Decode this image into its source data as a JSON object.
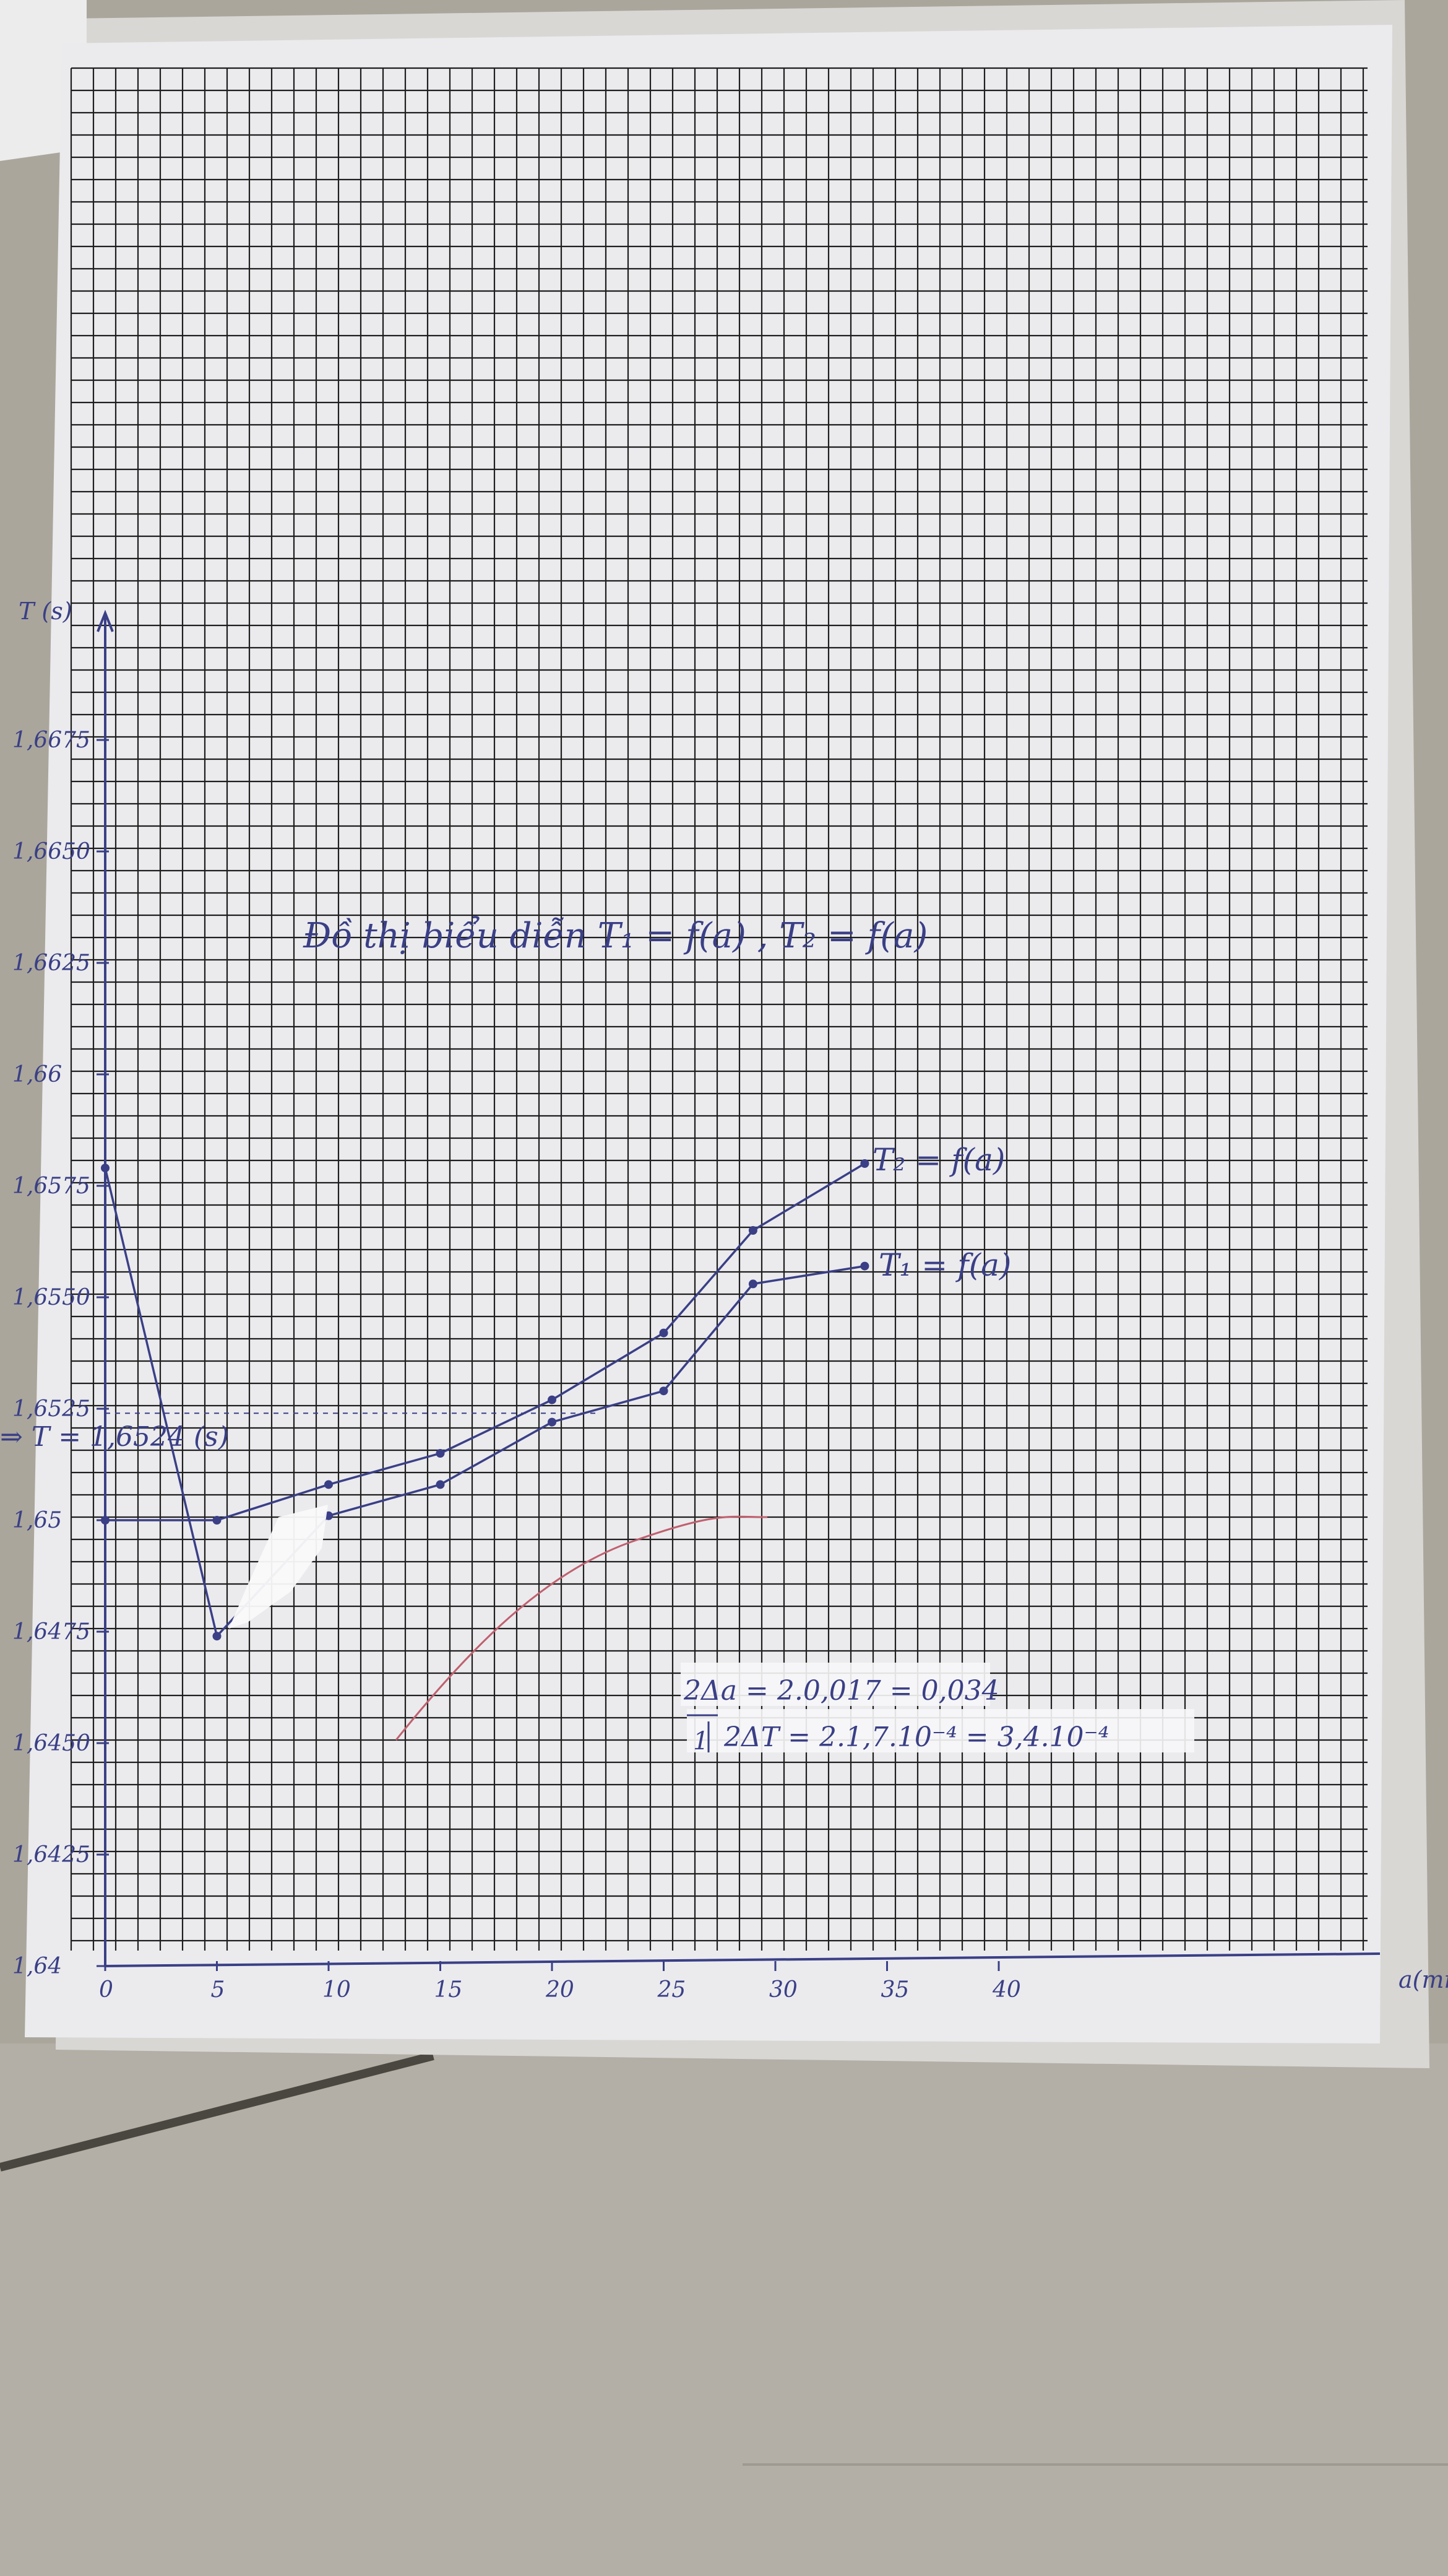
{
  "chart_data": {
    "type": "line",
    "title": "Đồ thị biểu diễn T₁ = f(a) , T₂ = f(a)",
    "xlabel": "a(mm)",
    "ylabel": "T (s)",
    "xlim": [
      0,
      45
    ],
    "ylim": [
      1.64,
      1.6725
    ],
    "grid": true,
    "x_ticks": [
      "0",
      "5",
      "10",
      "15",
      "20",
      "25",
      "30",
      "35",
      "40"
    ],
    "y_ticks": [
      "1,64",
      "1,6425",
      "1,6450",
      "1,6475",
      "1,65",
      "1,6525",
      "1,6550",
      "1,6575",
      "1,66",
      "1,6625",
      "1,6650",
      "1,6675"
    ],
    "series": [
      {
        "name": "T₂ = f(a)",
        "x": [
          0,
          5,
          10,
          15,
          20,
          25,
          29,
          34
        ],
        "y": [
          1.65,
          1.65,
          1.6508,
          1.6515,
          1.6527,
          1.6542,
          1.6565,
          1.658
        ]
      },
      {
        "name": "T₁ = f(a)",
        "x": [
          0,
          5,
          10,
          15,
          20,
          25,
          29,
          34
        ],
        "y": [
          1.6579,
          1.6474,
          1.6501,
          1.6508,
          1.6522,
          1.6529,
          1.6553,
          1.6557
        ]
      }
    ],
    "annotations": {
      "intersection_label": "⇒ T = 1,6524 (s)",
      "err_a": "2Δa = 2.0,017 = 0,034",
      "err_t": "2ΔT = 2.1,7.10⁻⁴ = 3,4.10⁻⁴",
      "err_t_mark": "1"
    },
    "colors": {
      "ink": "#3a3f86",
      "grid": "#1e1e1e",
      "paper": "#eeeef0",
      "red_pencil": "#c0606e"
    }
  }
}
